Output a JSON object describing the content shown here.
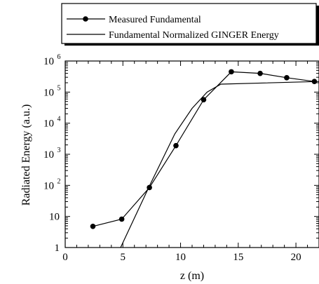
{
  "chart_data": {
    "type": "line",
    "xlabel": "z (m)",
    "ylabel": "Radiated Energy (a.u.)",
    "xlim": [
      0,
      22
    ],
    "ylim": [
      1,
      1000000
    ],
    "yscale": "log",
    "grid": false,
    "legend_position": "top",
    "x_ticks": [
      0,
      5,
      10,
      15,
      20
    ],
    "x_tick_labels": [
      "0",
      "5",
      "10",
      "15",
      "20"
    ],
    "y_ticks": [
      1,
      10,
      100,
      1000,
      10000,
      100000,
      1000000
    ],
    "y_tick_labels": [
      {
        "base": "1",
        "exp": ""
      },
      {
        "base": "10",
        "exp": ""
      },
      {
        "base": "10",
        "exp": "2"
      },
      {
        "base": "10",
        "exp": "3"
      },
      {
        "base": "10",
        "exp": "4"
      },
      {
        "base": "10",
        "exp": "5"
      },
      {
        "base": "10",
        "exp": "6"
      }
    ],
    "series": [
      {
        "name": "Measured Fundamental",
        "marker": "circle",
        "color": "#000000",
        "x": [
          2.4,
          4.9,
          7.3,
          9.6,
          12.0,
          14.4,
          16.9,
          19.2,
          21.6
        ],
        "y": [
          4.8,
          8.2,
          85,
          1900,
          57000,
          450000,
          400000,
          290000,
          220000
        ]
      },
      {
        "name": "Fundamental Normalized GINGER Energy",
        "marker": "none",
        "color": "#000000",
        "x": [
          4.8,
          7.3,
          9.5,
          11.0,
          12.3,
          13.5,
          22.0
        ],
        "y": [
          1.0,
          95,
          4500,
          30000,
          100000,
          180000,
          220000
        ]
      }
    ]
  }
}
